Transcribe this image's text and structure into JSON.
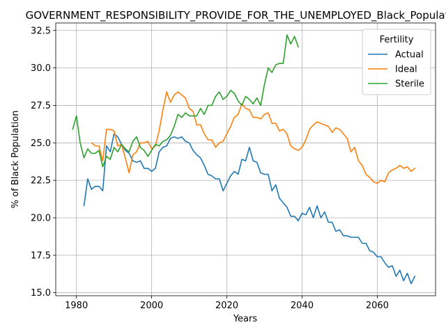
{
  "chart_data": {
    "type": "line",
    "title": "GOVERNMENT_RESPONSIBILITY_PROVIDE_FOR_THE_UNEMPLOYED_Black_Population",
    "xlabel": "Years",
    "ylabel": "% of Black Population",
    "xlim": [
      1974.5,
      2075.5
    ],
    "ylim": [
      14.8,
      33.0
    ],
    "xticks": [
      1980,
      2000,
      2020,
      2040,
      2060
    ],
    "yticks": [
      15.0,
      17.5,
      20.0,
      22.5,
      25.0,
      27.5,
      30.0,
      32.5
    ],
    "xtick_labels": [
      "1980",
      "2000",
      "2020",
      "2040",
      "2060"
    ],
    "ytick_labels": [
      "15.0",
      "17.5",
      "20.0",
      "22.5",
      "25.0",
      "27.5",
      "30.0",
      "32.5"
    ],
    "grid": true,
    "legend": {
      "title": "Fertility",
      "position": "top-right"
    },
    "series": [
      {
        "name": "Actual",
        "color": "#1f77b4",
        "x": [
          1982,
          1983,
          1984,
          1985,
          1986,
          1987,
          1988,
          1989,
          1990,
          1991,
          1992,
          1993,
          1994,
          1995,
          1996,
          1997,
          1998,
          1999,
          2000,
          2001,
          2002,
          2003,
          2004,
          2005,
          2006,
          2007,
          2008,
          2009,
          2010,
          2011,
          2012,
          2013,
          2014,
          2015,
          2016,
          2017,
          2018,
          2019,
          2020,
          2021,
          2022,
          2023,
          2024,
          2025,
          2026,
          2027,
          2028,
          2029,
          2030,
          2031,
          2032,
          2033,
          2034,
          2035,
          2036,
          2037,
          2038,
          2039,
          2040,
          2041,
          2042,
          2043,
          2044,
          2045,
          2046,
          2047,
          2048,
          2049,
          2050,
          2051,
          2052,
          2053,
          2054,
          2055,
          2056,
          2057,
          2058,
          2059,
          2060,
          2061,
          2062,
          2063,
          2064,
          2065,
          2066,
          2067,
          2068,
          2069,
          2070
        ],
        "values": [
          20.8,
          22.6,
          21.9,
          22.1,
          22.1,
          21.8,
          24.8,
          24.4,
          25.6,
          25.4,
          24.9,
          24.5,
          24.3,
          23.8,
          23.7,
          23.8,
          23.3,
          23.3,
          23.1,
          23.3,
          24.4,
          24.7,
          24.8,
          25.3,
          25.4,
          25.3,
          25.4,
          25.1,
          25.0,
          24.5,
          24.2,
          24.0,
          23.5,
          22.9,
          22.8,
          22.6,
          22.6,
          21.8,
          22.3,
          22.8,
          23.1,
          22.9,
          23.9,
          23.8,
          24.7,
          23.8,
          23.7,
          23.0,
          22.9,
          22.9,
          21.8,
          22.2,
          21.3,
          21.0,
          20.7,
          20.1,
          20.1,
          19.8,
          20.3,
          20.2,
          20.7,
          20.0,
          20.8,
          20.0,
          20.4,
          19.7,
          19.7,
          19.1,
          19.2,
          18.8,
          18.8,
          18.7,
          18.7,
          18.7,
          18.3,
          18.3,
          17.8,
          17.7,
          17.4,
          17.4,
          17.0,
          16.7,
          16.8,
          16.1,
          16.5,
          15.8,
          16.3,
          15.6,
          16.1
        ]
      },
      {
        "name": "Ideal",
        "color": "#ff7f0e",
        "x": [
          1984,
          1985,
          1986,
          1987,
          1988,
          1989,
          1990,
          1991,
          1992,
          1993,
          1994,
          1995,
          1996,
          1997,
          1998,
          1999,
          2000,
          2001,
          2002,
          2003,
          2004,
          2005,
          2006,
          2007,
          2008,
          2009,
          2010,
          2011,
          2012,
          2013,
          2014,
          2015,
          2016,
          2017,
          2018,
          2019,
          2020,
          2021,
          2022,
          2023,
          2024,
          2025,
          2026,
          2027,
          2028,
          2029,
          2030,
          2031,
          2032,
          2033,
          2034,
          2035,
          2036,
          2037,
          2038,
          2039,
          2040,
          2041,
          2042,
          2043,
          2044,
          2045,
          2046,
          2047,
          2048,
          2049,
          2050,
          2051,
          2052,
          2053,
          2054,
          2055,
          2056,
          2057,
          2058,
          2059,
          2060,
          2061,
          2062,
          2063,
          2064,
          2065,
          2066,
          2067,
          2068,
          2069,
          2070
        ],
        "values": [
          25.0,
          24.8,
          24.8,
          23.8,
          25.9,
          25.9,
          25.8,
          24.8,
          24.9,
          24.0,
          23.0,
          24.2,
          24.4,
          25.0,
          25.0,
          25.1,
          24.6,
          24.8,
          25.8,
          27.2,
          28.4,
          27.7,
          28.2,
          28.4,
          28.2,
          28.0,
          27.3,
          27.1,
          26.2,
          26.2,
          25.6,
          25.2,
          25.2,
          24.7,
          25.0,
          25.1,
          25.6,
          26.1,
          26.7,
          26.9,
          27.6,
          27.3,
          27.2,
          26.7,
          26.7,
          26.6,
          26.9,
          27.0,
          26.3,
          26.3,
          25.8,
          25.9,
          25.6,
          24.8,
          24.6,
          24.5,
          24.7,
          25.2,
          25.9,
          26.2,
          26.4,
          26.3,
          26.2,
          26.1,
          25.7,
          26.0,
          25.9,
          25.6,
          25.3,
          24.4,
          24.7,
          23.8,
          23.5,
          22.9,
          22.7,
          22.4,
          22.3,
          22.5,
          22.4,
          23.0,
          23.2,
          23.3,
          23.5,
          23.3,
          23.4,
          23.1,
          23.3
        ]
      },
      {
        "name": "Sterile",
        "color": "#2ca02c",
        "x": [
          1979,
          1980,
          1981,
          1982,
          1983,
          1984,
          1985,
          1986,
          1987,
          1988,
          1989,
          1990,
          1991,
          1992,
          1993,
          1994,
          1995,
          1996,
          1997,
          1998,
          1999,
          2000,
          2001,
          2002,
          2003,
          2004,
          2005,
          2006,
          2007,
          2008,
          2009,
          2010,
          2011,
          2012,
          2013,
          2014,
          2015,
          2016,
          2017,
          2018,
          2019,
          2020,
          2021,
          2022,
          2023,
          2024,
          2025,
          2026,
          2027,
          2028,
          2029,
          2030,
          2031,
          2032,
          2033,
          2034,
          2035,
          2036,
          2037,
          2038,
          2039
        ],
        "values": [
          25.9,
          26.8,
          25.0,
          24.0,
          24.6,
          24.3,
          24.3,
          24.5,
          23.4,
          24.1,
          23.9,
          24.7,
          24.4,
          24.9,
          24.6,
          24.4,
          25.1,
          25.4,
          24.7,
          24.5,
          24.1,
          24.5,
          24.9,
          24.8,
          25.1,
          25.2,
          25.5,
          26.1,
          26.9,
          26.7,
          27.0,
          26.8,
          26.8,
          26.8,
          27.3,
          26.9,
          27.5,
          27.5,
          28.1,
          28.4,
          27.9,
          28.1,
          28.5,
          28.3,
          27.8,
          27.5,
          28.1,
          27.9,
          27.6,
          28.0,
          27.5,
          28.9,
          30.0,
          29.7,
          30.2,
          30.3,
          30.3,
          32.2,
          31.6,
          32.1,
          31.4
        ]
      }
    ]
  }
}
